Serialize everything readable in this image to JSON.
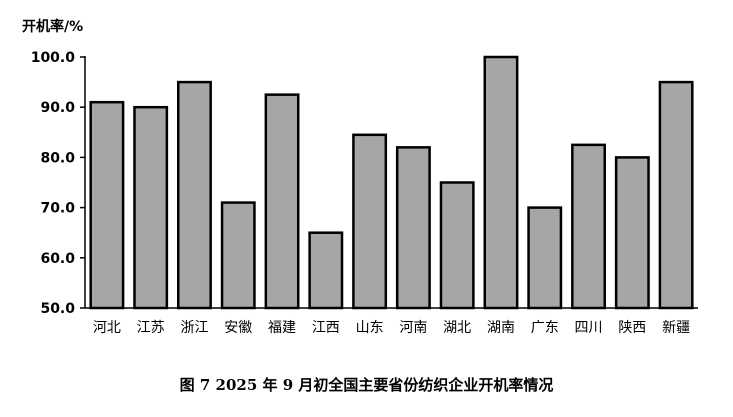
{
  "caption": "图 7   2025 年 9 月初全国主要省份纺织企业开机率情况",
  "chart_data": {
    "type": "bar",
    "ylabel": "开机率/%",
    "xlabel": "",
    "ylim": [
      50,
      100
    ],
    "yticks": [
      "50.0",
      "60.0",
      "70.0",
      "80.0",
      "90.0",
      "100.0"
    ],
    "categories": [
      "河北",
      "江苏",
      "浙江",
      "安徽",
      "福建",
      "江西",
      "山东",
      "河南",
      "湖北",
      "湖南",
      "广东",
      "四川",
      "陕西",
      "新疆"
    ],
    "values": [
      91,
      90,
      95,
      71,
      92.5,
      65,
      84.5,
      82,
      75,
      100,
      70,
      82.5,
      80,
      95
    ],
    "grid": false,
    "colors": {
      "bar_fill": "#a6a6a6",
      "bar_stroke": "#000000",
      "axis": "#000000"
    }
  }
}
